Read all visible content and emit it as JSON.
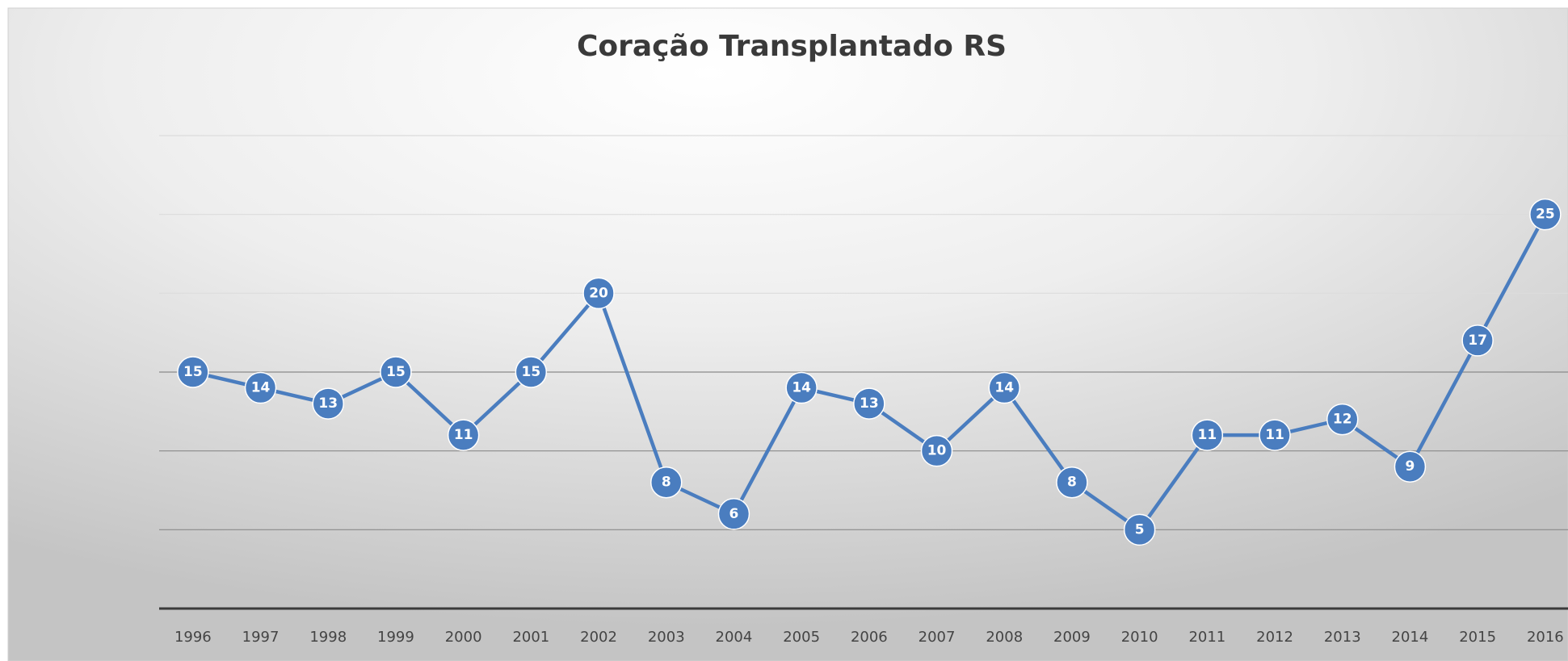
{
  "chart_data": {
    "type": "line",
    "title": "Coração Transplantado RS",
    "categories": [
      "1996",
      "1997",
      "1998",
      "1999",
      "2000",
      "2001",
      "2002",
      "2003",
      "2004",
      "2005",
      "2006",
      "2007",
      "2008",
      "2009",
      "2010",
      "2011",
      "2012",
      "2013",
      "2014",
      "2015",
      "2016"
    ],
    "series": [
      {
        "color": "#4a7dbf",
        "values": [
          15,
          14,
          13,
          15,
          11,
          15,
          20,
          8,
          6,
          14,
          13,
          10,
          14,
          8,
          5,
          11,
          11,
          12,
          9,
          17,
          25
        ]
      }
    ],
    "ylim": [
      0,
      30
    ],
    "yticks": [
      0,
      5,
      10,
      15,
      20,
      25,
      30
    ],
    "grid": true
  }
}
